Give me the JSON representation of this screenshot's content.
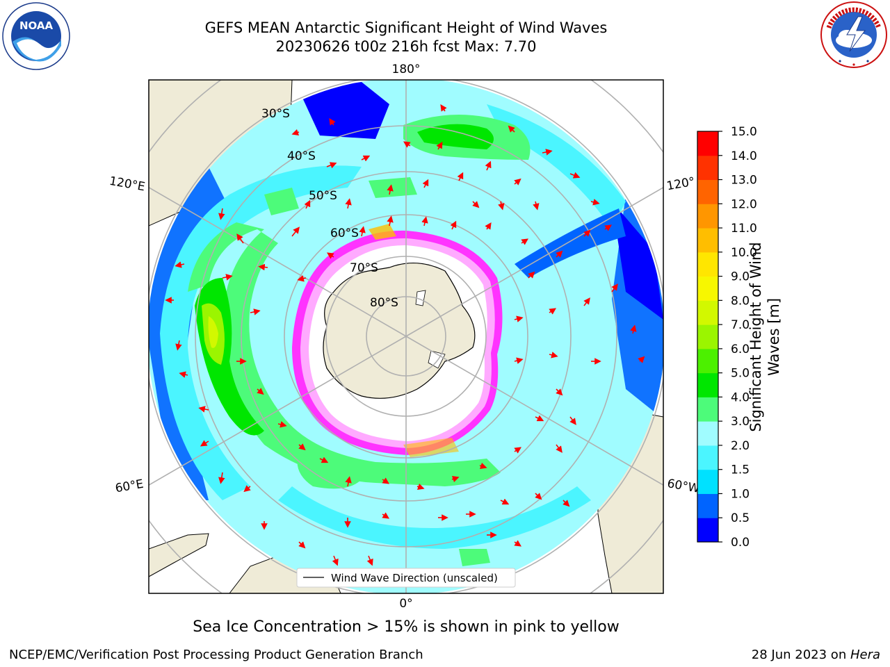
{
  "title": {
    "line1": "GEFS MEAN Antarctic Significant Height of Wind Waves",
    "line2": "20230626 t00z 216h fcst   Max: 7.70"
  },
  "logos": {
    "noaa": {
      "text": "NOAA",
      "ring_text": "NATIONAL OCEANIC AND ATMOSPHERIC ADMINISTRATION · U.S. DEPARTMENT OF COMMERCE"
    },
    "nws": {
      "ring_text": "NATIONAL WEATHER SERVICE"
    }
  },
  "map": {
    "projection": "south-polar-stereographic",
    "longitude_labels": {
      "top": "180°",
      "left_upper": "120°E",
      "right_upper": "120°",
      "left_lower": "60°E",
      "right_lower": "60°W",
      "bottom": "0°"
    },
    "latitude_labels": [
      "30°S",
      "40°S",
      "50°S",
      "60°S",
      "70°S",
      "80°S"
    ],
    "legend": "Wind Wave Direction (unscaled)"
  },
  "colorbar": {
    "label": "Significant Height of Wind Waves [m]",
    "label_line1": "Significant Height of Wind",
    "label_line2": "Waves [m]",
    "ticks": [
      "0.0",
      "0.5",
      "1.0",
      "1.5",
      "2.0",
      "3.0",
      "4.0",
      "5.0",
      "6.0",
      "7.0",
      "8.0",
      "9.0",
      "10.0",
      "11.0",
      "12.0",
      "13.0",
      "14.0",
      "15.0"
    ],
    "colors": [
      "#0000ff",
      "#0064ff",
      "#00e1ff",
      "#4bf5ff",
      "#a0fcff",
      "#4dfb7a",
      "#00e600",
      "#4cf000",
      "#9bf500",
      "#d2f800",
      "#f7f700",
      "#ffe600",
      "#ffbe00",
      "#ff9600",
      "#ff6400",
      "#ff3200",
      "#ff0000"
    ]
  },
  "caption": "Sea Ice Concentration > 15% is shown in pink to yellow",
  "credits": {
    "left": "NCEP/EMC/Verification Post Processing Product Generation Branch",
    "right_date": "28 Jun 2023 on ",
    "right_host": "Hera"
  }
}
